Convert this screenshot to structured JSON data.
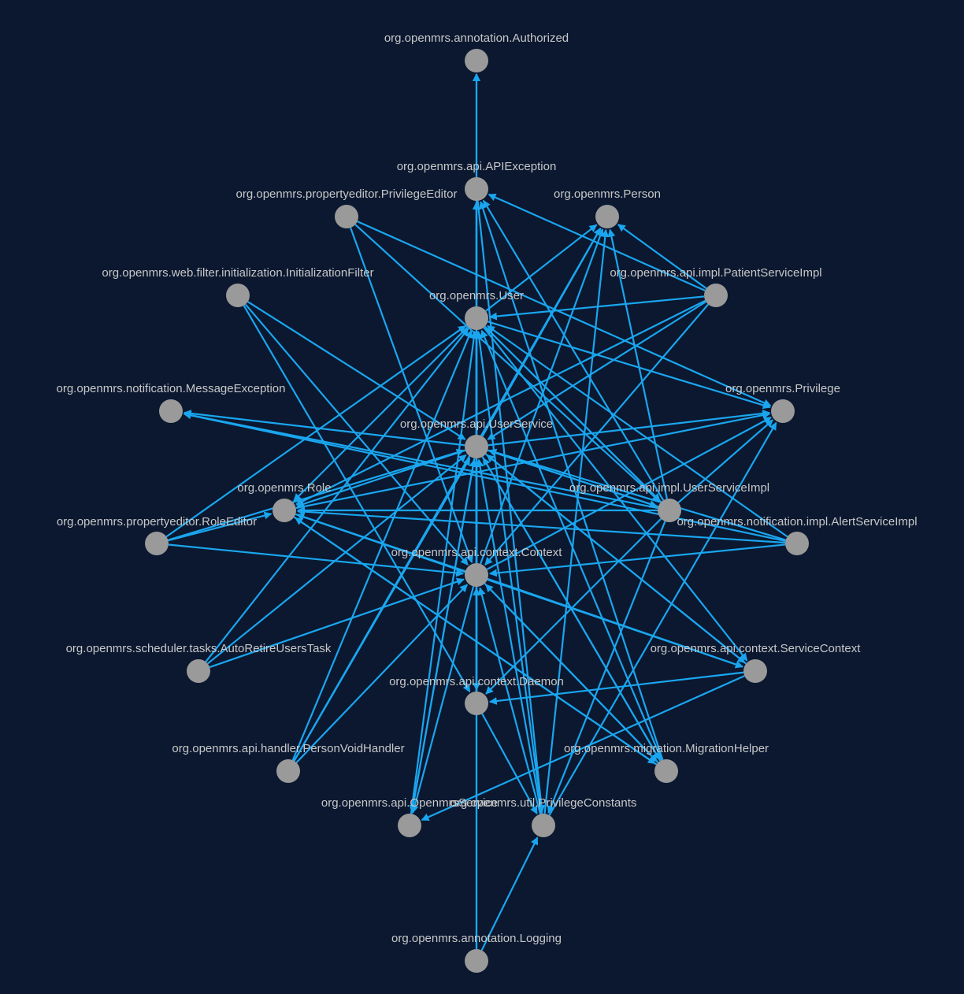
{
  "colors": {
    "background": "#0b1830",
    "edge": "#1aa6ef",
    "node": "#9a9a9a",
    "label": "#c8c8c8"
  },
  "nodes": [
    {
      "id": "authorized",
      "label": "org.openmrs.annotation.Authorized"
    },
    {
      "id": "apiexception",
      "label": "org.openmrs.api.APIException"
    },
    {
      "id": "privilegeeditor",
      "label": "org.openmrs.propertyeditor.PrivilegeEditor"
    },
    {
      "id": "person",
      "label": "org.openmrs.Person"
    },
    {
      "id": "initfilter",
      "label": "org.openmrs.web.filter.initialization.InitializationFilter"
    },
    {
      "id": "user",
      "label": "org.openmrs.User"
    },
    {
      "id": "patientserviceimpl",
      "label": "org.openmrs.api.impl.PatientServiceImpl"
    },
    {
      "id": "messageexception",
      "label": "org.openmrs.notification.MessageException"
    },
    {
      "id": "userservice",
      "label": "org.openmrs.api.UserService"
    },
    {
      "id": "privilege",
      "label": "org.openmrs.Privilege"
    },
    {
      "id": "role",
      "label": "org.openmrs.Role"
    },
    {
      "id": "userserviceimpl",
      "label": "org.openmrs.api.impl.UserServiceImpl"
    },
    {
      "id": "roleeditor",
      "label": "org.openmrs.propertyeditor.RoleEditor"
    },
    {
      "id": "alertserviceimpl",
      "label": "org.openmrs.notification.impl.AlertServiceImpl"
    },
    {
      "id": "context",
      "label": "org.openmrs.api.context.Context"
    },
    {
      "id": "autoretire",
      "label": "org.openmrs.scheduler.tasks.AutoRetireUsersTask"
    },
    {
      "id": "servicecontext",
      "label": "org.openmrs.api.context.ServiceContext"
    },
    {
      "id": "daemon",
      "label": "org.openmrs.api.context.Daemon"
    },
    {
      "id": "personvoidhandler",
      "label": "org.openmrs.api.handler.PersonVoidHandler"
    },
    {
      "id": "migrationhelper",
      "label": "org.openmrs.migration.MigrationHelper"
    },
    {
      "id": "openmrsservice",
      "label": "org.openmrs.api.OpenmrsService"
    },
    {
      "id": "privilegeconstants",
      "label": "org.openmrs.util.PrivilegeConstants"
    },
    {
      "id": "logging",
      "label": "org.openmrs.annotation.Logging"
    }
  ],
  "edges": [
    [
      "apiexception",
      "authorized"
    ],
    [
      "userservice",
      "authorized"
    ],
    [
      "user",
      "apiexception"
    ],
    [
      "userservice",
      "apiexception"
    ],
    [
      "context",
      "apiexception"
    ],
    [
      "patientserviceimpl",
      "apiexception"
    ],
    [
      "userserviceimpl",
      "apiexception"
    ],
    [
      "migrationhelper",
      "apiexception"
    ],
    [
      "daemon",
      "apiexception"
    ],
    [
      "privilegeeditor",
      "privilege"
    ],
    [
      "privilegeeditor",
      "context"
    ],
    [
      "user",
      "person"
    ],
    [
      "userservice",
      "person"
    ],
    [
      "context",
      "person"
    ],
    [
      "patientserviceimpl",
      "person"
    ],
    [
      "userserviceimpl",
      "person"
    ],
    [
      "privilegeconstants",
      "person"
    ],
    [
      "personvoidhandler",
      "person"
    ],
    [
      "initfilter",
      "userservice"
    ],
    [
      "initfilter",
      "context"
    ],
    [
      "initfilter",
      "daemon"
    ],
    [
      "userservice",
      "user"
    ],
    [
      "context",
      "user"
    ],
    [
      "userserviceimpl",
      "user"
    ],
    [
      "patientserviceimpl",
      "user"
    ],
    [
      "daemon",
      "user"
    ],
    [
      "roleeditor",
      "user"
    ],
    [
      "autoretire",
      "user"
    ],
    [
      "personvoidhandler",
      "user"
    ],
    [
      "openmrsservice",
      "user"
    ],
    [
      "privilegeconstants",
      "user"
    ],
    [
      "logging",
      "user"
    ],
    [
      "patientserviceimpl",
      "userservice"
    ],
    [
      "patientserviceimpl",
      "context"
    ],
    [
      "patientserviceimpl",
      "role"
    ],
    [
      "userservice",
      "messageexception"
    ],
    [
      "userserviceimpl",
      "messageexception"
    ],
    [
      "alertserviceimpl",
      "messageexception"
    ],
    [
      "userservice",
      "privilege"
    ],
    [
      "userserviceimpl",
      "privilege"
    ],
    [
      "user",
      "privilege"
    ],
    [
      "role",
      "privilege"
    ],
    [
      "context",
      "privilege"
    ],
    [
      "roleeditor",
      "userservice"
    ],
    [
      "userservice",
      "role"
    ],
    [
      "userserviceimpl",
      "role"
    ],
    [
      "alertserviceimpl",
      "role"
    ],
    [
      "roleeditor",
      "role"
    ],
    [
      "context",
      "role"
    ],
    [
      "user",
      "role"
    ],
    [
      "migrationhelper",
      "role"
    ],
    [
      "userserviceimpl",
      "userservice"
    ],
    [
      "roleeditor",
      "context"
    ],
    [
      "alertserviceimpl",
      "userservice"
    ],
    [
      "alertserviceimpl",
      "context"
    ],
    [
      "alertserviceimpl",
      "user"
    ],
    [
      "context",
      "userservice"
    ],
    [
      "context",
      "servicecontext"
    ],
    [
      "daemon",
      "userservice"
    ],
    [
      "autoretire",
      "userservice"
    ],
    [
      "autoretire",
      "context"
    ],
    [
      "servicecontext",
      "userservice"
    ],
    [
      "servicecontext",
      "daemon"
    ],
    [
      "userservice",
      "servicecontext"
    ],
    [
      "context",
      "daemon"
    ],
    [
      "daemon",
      "context"
    ],
    [
      "personvoidhandler",
      "userservice"
    ],
    [
      "personvoidhandler",
      "context"
    ],
    [
      "migrationhelper",
      "userservice"
    ],
    [
      "migrationhelper",
      "user"
    ],
    [
      "migrationhelper",
      "context"
    ],
    [
      "openmrsservice",
      "userservice"
    ],
    [
      "privilegeconstants",
      "userservice"
    ],
    [
      "privilegeconstants",
      "privilege"
    ],
    [
      "privilegeconstants",
      "context"
    ],
    [
      "servicecontext",
      "openmrsservice"
    ],
    [
      "userservice",
      "openmrsservice"
    ],
    [
      "context",
      "openmrsservice"
    ],
    [
      "logging",
      "userservice"
    ],
    [
      "logging",
      "privilegeconstants"
    ],
    [
      "user",
      "servicecontext"
    ],
    [
      "role",
      "servicecontext"
    ],
    [
      "userserviceimpl",
      "daemon"
    ],
    [
      "userserviceimpl",
      "privilegeconstants"
    ],
    [
      "daemon",
      "privilegeconstants"
    ],
    [
      "apiexception",
      "privilegeconstants"
    ],
    [
      "privilegeeditor",
      "userserviceimpl"
    ],
    [
      "user",
      "userserviceimpl"
    ],
    [
      "userservice",
      "userserviceimpl"
    ],
    [
      "role",
      "migrationhelper"
    ],
    [
      "userservice",
      "migrationhelper"
    ],
    [
      "context",
      "migrationhelper"
    ]
  ]
}
